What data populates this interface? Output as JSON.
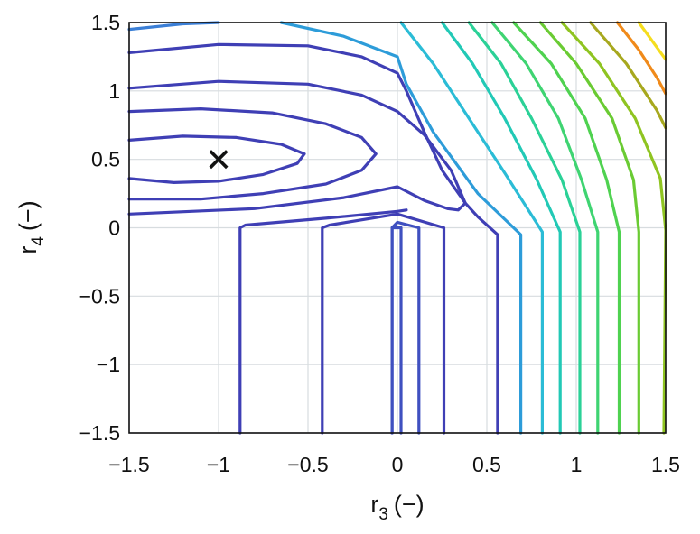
{
  "chart_data": {
    "type": "contour",
    "xlabel": "r",
    "xlabel_sub": "3",
    "xlabel_unit": "(−)",
    "ylabel": "r",
    "ylabel_sub": "4",
    "ylabel_unit": "(−)",
    "xlim": [
      -1.5,
      1.5
    ],
    "ylim": [
      -1.5,
      1.5
    ],
    "xticks": [
      -1.5,
      -1,
      -0.5,
      0,
      0.5,
      1,
      1.5
    ],
    "yticks": [
      -1.5,
      -1,
      -0.5,
      0,
      0.5,
      1,
      1.5
    ],
    "xtick_labels": [
      "−1.5",
      "−1",
      "−0.5",
      "0",
      "0.5",
      "1",
      "1.5"
    ],
    "ytick_labels": [
      "−1.5",
      "−1",
      "−0.5",
      "0",
      "0.5",
      "1",
      "1.5"
    ],
    "grid": true,
    "marker": {
      "x": -1.0,
      "y": 0.5,
      "symbol": "×"
    },
    "contours": [
      {
        "color": "#3f3fb5",
        "points": [
          [
            -1.5,
            0.64
          ],
          [
            -1.2,
            0.67
          ],
          [
            -0.9,
            0.66
          ],
          [
            -0.65,
            0.61
          ],
          [
            -0.52,
            0.54
          ],
          [
            -0.56,
            0.47
          ],
          [
            -0.75,
            0.39
          ],
          [
            -1.0,
            0.34
          ],
          [
            -1.25,
            0.33
          ],
          [
            -1.5,
            0.36
          ]
        ]
      },
      {
        "color": "#3f3fb5",
        "points": [
          [
            -1.5,
            0.85
          ],
          [
            -1.1,
            0.87
          ],
          [
            -0.7,
            0.84
          ],
          [
            -0.4,
            0.76
          ],
          [
            -0.2,
            0.66
          ],
          [
            -0.12,
            0.54
          ],
          [
            -0.2,
            0.42
          ],
          [
            -0.4,
            0.32
          ],
          [
            -0.75,
            0.25
          ],
          [
            -1.1,
            0.21
          ],
          [
            -1.5,
            0.21
          ]
        ]
      },
      {
        "color": "#3f3fb5",
        "points": [
          [
            -1.5,
            1.02
          ],
          [
            -1.0,
            1.07
          ],
          [
            -0.5,
            1.05
          ],
          [
            -0.2,
            0.97
          ],
          [
            0.0,
            0.85
          ],
          [
            0.15,
            0.68
          ],
          [
            0.3,
            0.42
          ],
          [
            0.38,
            0.18
          ],
          [
            0.34,
            0.13
          ],
          [
            0.28,
            0.14
          ],
          [
            0.15,
            0.2
          ],
          [
            0.0,
            0.3
          ],
          [
            -0.3,
            0.22
          ],
          [
            -0.8,
            0.14
          ],
          [
            -1.5,
            0.1
          ]
        ]
      },
      {
        "color": "#3f3fb5",
        "points": [
          [
            -0.88,
            -1.5
          ],
          [
            -0.88,
            0.0
          ],
          [
            -0.85,
            0.02
          ],
          [
            -0.4,
            0.07
          ],
          [
            0.0,
            0.12
          ],
          [
            0.05,
            0.13
          ]
        ]
      },
      {
        "color": "#3f3fb5",
        "points": [
          [
            -1.5,
            1.28
          ],
          [
            -1.0,
            1.34
          ],
          [
            -0.5,
            1.33
          ],
          [
            -0.2,
            1.25
          ],
          [
            0.0,
            1.13
          ],
          [
            0.05,
            1.0
          ],
          [
            0.15,
            0.7
          ],
          [
            0.25,
            0.42
          ],
          [
            0.38,
            0.18
          ],
          [
            0.45,
            0.08
          ],
          [
            0.56,
            -0.05
          ],
          [
            0.56,
            -1.5
          ]
        ]
      },
      {
        "color": "#3f3fb5",
        "points": [
          [
            -0.42,
            -1.5
          ],
          [
            -0.42,
            0.0
          ],
          [
            -0.38,
            0.02
          ],
          [
            0.0,
            0.1
          ],
          [
            0.26,
            0.0
          ],
          [
            0.26,
            -1.5
          ]
        ]
      },
      {
        "color": "#3f50c0",
        "points": [
          [
            -0.03,
            -1.5
          ],
          [
            -0.03,
            0.0
          ],
          [
            0.02,
            0.0
          ],
          [
            0.02,
            -1.5
          ]
        ]
      },
      {
        "color": "#3f50c0",
        "points": [
          [
            -0.03,
            -1.5
          ],
          [
            -0.03,
            0.0
          ],
          [
            0.0,
            0.04
          ],
          [
            0.12,
            0.0
          ],
          [
            0.12,
            -1.5
          ]
        ]
      },
      {
        "color": "#3b7fd6",
        "points": [
          [
            -1.5,
            1.45
          ],
          [
            -1.2,
            1.49
          ],
          [
            -1.0,
            1.5
          ]
        ]
      },
      {
        "color": "#2d9cd9",
        "points": [
          [
            -0.65,
            1.5
          ],
          [
            -0.3,
            1.4
          ],
          [
            0.0,
            1.25
          ],
          [
            0.05,
            1.05
          ],
          [
            0.2,
            0.7
          ],
          [
            0.45,
            0.25
          ],
          [
            0.69,
            -0.05
          ],
          [
            0.69,
            -1.5
          ]
        ]
      },
      {
        "color": "#2bbcd6",
        "points": [
          [
            0.02,
            1.5
          ],
          [
            0.2,
            1.2
          ],
          [
            0.4,
            0.8
          ],
          [
            0.6,
            0.4
          ],
          [
            0.81,
            -0.03
          ],
          [
            0.81,
            -1.5
          ]
        ]
      },
      {
        "color": "#22c9b6",
        "points": [
          [
            0.25,
            1.5
          ],
          [
            0.42,
            1.2
          ],
          [
            0.6,
            0.8
          ],
          [
            0.78,
            0.35
          ],
          [
            0.91,
            -0.03
          ],
          [
            0.91,
            -1.5
          ]
        ]
      },
      {
        "color": "#2bd197",
        "points": [
          [
            0.4,
            1.5
          ],
          [
            0.58,
            1.2
          ],
          [
            0.75,
            0.8
          ],
          [
            0.92,
            0.35
          ],
          [
            1.02,
            -0.03
          ],
          [
            1.02,
            -1.5
          ]
        ]
      },
      {
        "color": "#3fd472",
        "points": [
          [
            0.53,
            1.5
          ],
          [
            0.72,
            1.2
          ],
          [
            0.9,
            0.8
          ],
          [
            1.03,
            0.35
          ],
          [
            1.12,
            -0.03
          ],
          [
            1.12,
            -1.5
          ]
        ]
      },
      {
        "color": "#4fd250",
        "points": [
          [
            0.65,
            1.5
          ],
          [
            0.86,
            1.2
          ],
          [
            1.05,
            0.8
          ],
          [
            1.17,
            0.35
          ],
          [
            1.24,
            -0.03
          ],
          [
            1.24,
            -1.5
          ]
        ]
      },
      {
        "color": "#6acb33",
        "points": [
          [
            0.8,
            1.5
          ],
          [
            1.0,
            1.2
          ],
          [
            1.2,
            0.8
          ],
          [
            1.32,
            0.35
          ],
          [
            1.35,
            -0.03
          ],
          [
            1.35,
            -1.5
          ]
        ]
      },
      {
        "color": "#8fc421",
        "points": [
          [
            0.92,
            1.5
          ],
          [
            1.13,
            1.2
          ],
          [
            1.33,
            0.8
          ],
          [
            1.47,
            0.36
          ],
          [
            1.5,
            -0.02
          ],
          [
            1.49,
            -1.5
          ]
        ]
      },
      {
        "color": "#a7a81e",
        "points": [
          [
            1.08,
            1.5
          ],
          [
            1.28,
            1.2
          ],
          [
            1.45,
            0.86
          ],
          [
            1.5,
            0.73
          ]
        ]
      },
      {
        "color": "#f08a1a",
        "points": [
          [
            1.23,
            1.5
          ],
          [
            1.35,
            1.3
          ],
          [
            1.45,
            1.1
          ],
          [
            1.5,
            0.98
          ]
        ]
      },
      {
        "color": "#f5dd1e",
        "points": [
          [
            1.35,
            1.5
          ],
          [
            1.45,
            1.32
          ],
          [
            1.5,
            1.23
          ]
        ]
      }
    ]
  }
}
